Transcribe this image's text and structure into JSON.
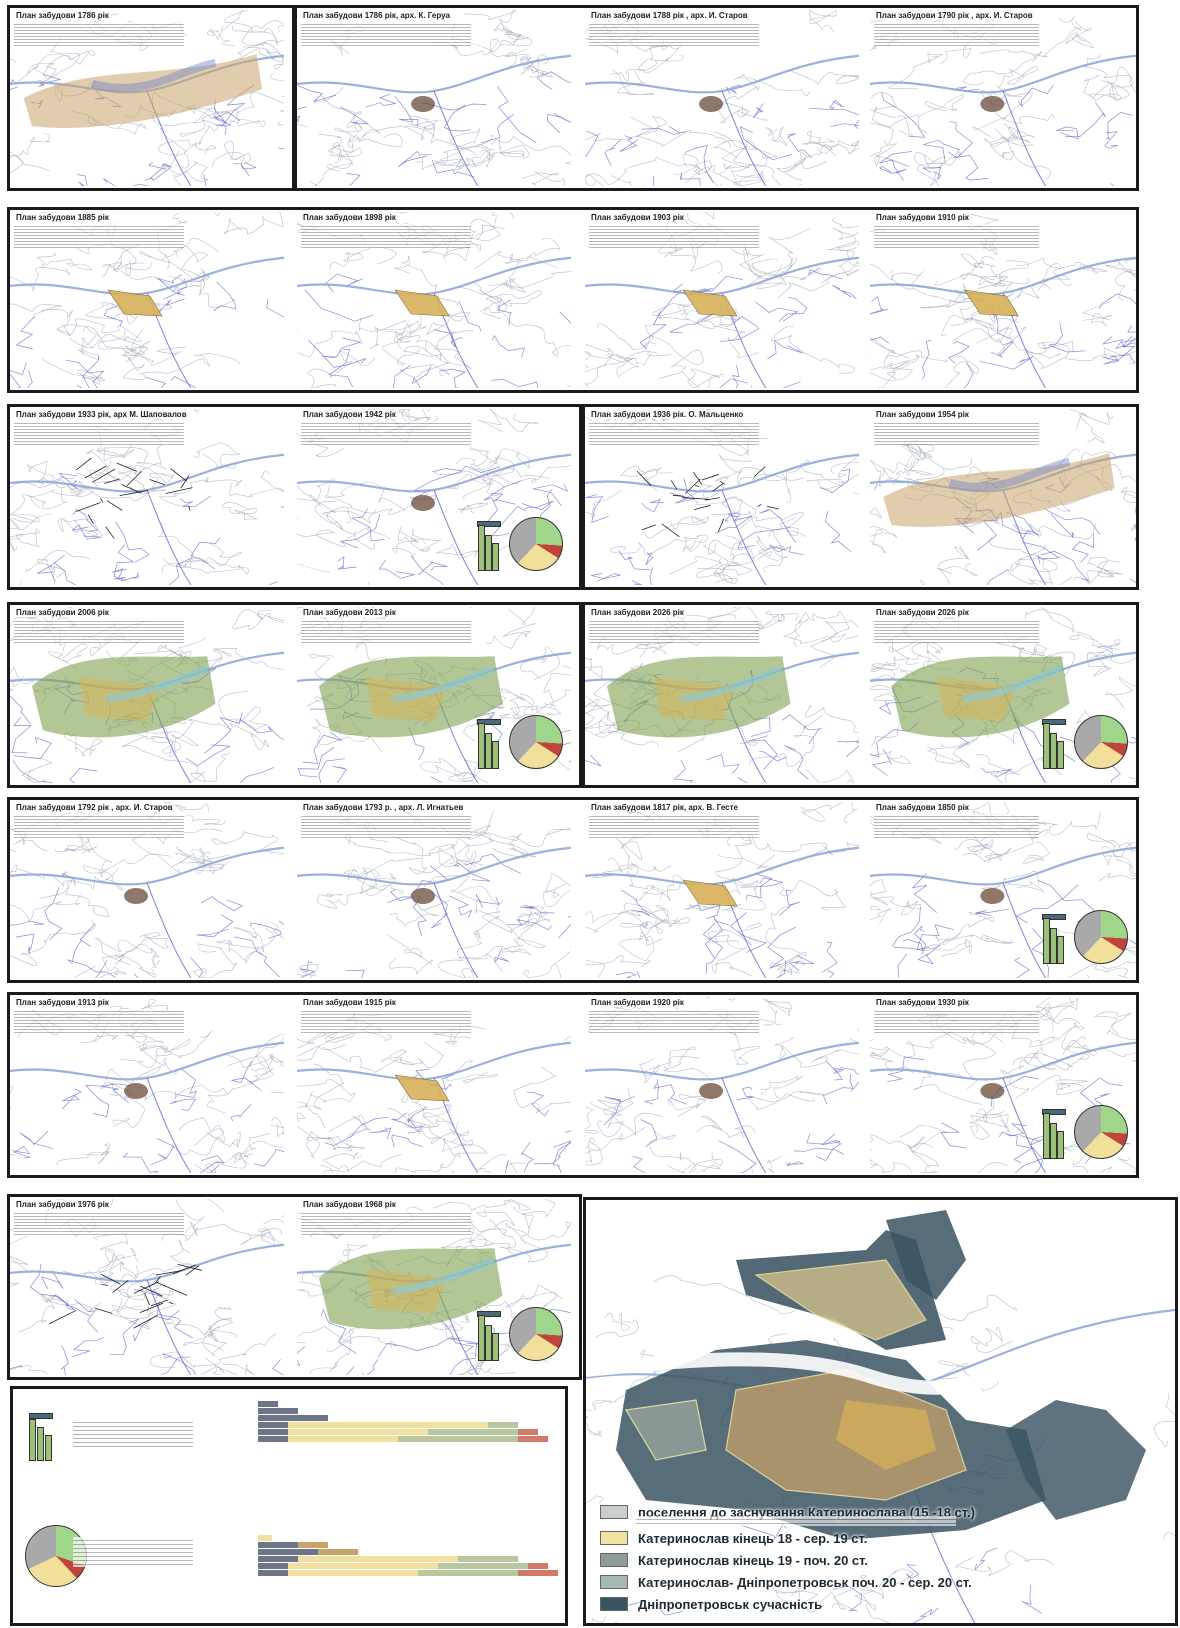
{
  "rows": [
    {
      "panels": [
        {
          "title": "План забудови 1786 рік",
          "kind": "wide"
        },
        {
          "title": "План забудови 1786 рік, арх. К. Геруа",
          "kind": "small"
        },
        {
          "title": "План забудови 1788 рік , арх. И. Старов",
          "kind": "small"
        },
        {
          "title": "План забудови 1790 рік , арх. И. Старов",
          "kind": "small"
        }
      ]
    },
    {
      "panels": [
        {
          "title": "План забудови 1885 рік",
          "kind": "yellow"
        },
        {
          "title": "План забудови 1898 рік",
          "kind": "yellow"
        },
        {
          "title": "План забудови 1903 рік",
          "kind": "yellow"
        },
        {
          "title": "План забудови 1910 рік",
          "kind": "yellow"
        }
      ]
    },
    {
      "panels": [
        {
          "title": "План забудови 1933 рік, арх М. Шаповалов",
          "kind": "grid"
        },
        {
          "title": "План забудови 1942 рік",
          "kind": "small"
        },
        {
          "title": "План забудови 1936 рік. О. Мальценко",
          "kind": "grid"
        },
        {
          "title": "План забудови 1954 рік",
          "kind": "wide"
        }
      ]
    },
    {
      "panels": [
        {
          "title": "План забудови 2006 рік",
          "kind": "green"
        },
        {
          "title": "План забудови 2013 рік",
          "kind": "green"
        },
        {
          "title": "План забудови 2026 рік",
          "kind": "green"
        },
        {
          "title": "План забудови 2026 рік",
          "kind": "green"
        }
      ]
    },
    {
      "panels": [
        {
          "title": "План забудови 1792 рік , арх. И. Старов",
          "kind": "small"
        },
        {
          "title": "План забудови 1793 р. , арх. Л. Игнатьев",
          "kind": "small"
        },
        {
          "title": "План забудови 1817 рік, арх. В. Гесте",
          "kind": "yellow"
        },
        {
          "title": "План забудови 1850 рік",
          "kind": "small"
        }
      ]
    },
    {
      "panels": [
        {
          "title": "План забудови 1913 рік",
          "kind": "small"
        },
        {
          "title": "План забудови 1915 рік",
          "kind": "yellow"
        },
        {
          "title": "План забудови 1920 рік",
          "kind": "small"
        },
        {
          "title": "План забудови 1930 рік",
          "kind": "small"
        }
      ]
    },
    {
      "panels": [
        {
          "title": "План забудови 1976 рік",
          "kind": "grid"
        },
        {
          "title": "План забудови 1968 рік",
          "kind": "green"
        }
      ]
    }
  ],
  "big_map_legend": [
    {
      "label": "поселення до заснування Катеринослава (15 -18 ст.)",
      "color": "#c8cfca"
    },
    {
      "label": "Катеринослав кінець 18 - сер. 19 ст.",
      "color": "#f3e3a3"
    },
    {
      "label": "Катеринослав кінець 19 - поч. 20 ст.",
      "color": "#8f9d98"
    },
    {
      "label": "Катеринослав- Дніпропетровськ поч. 20 - сер. 20 ст.",
      "color": "#a7b8b6"
    },
    {
      "label": "Дніпропетровськ сучасність",
      "color": "#3b5463"
    }
  ],
  "colors": {
    "river": "#8fa8d8",
    "contour": "#6b6ed6",
    "relief": "#9aa3b6",
    "yellow": "#d9b25a",
    "green": "#7fa24e",
    "dark": "#3b5463"
  }
}
